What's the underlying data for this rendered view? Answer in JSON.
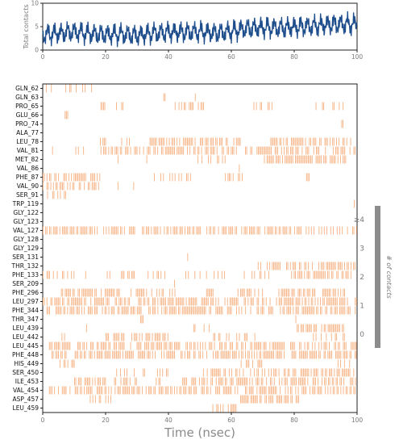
{
  "colors": {
    "line": "#1f4e8c",
    "contact": "#f6b07f",
    "axis": "#222222",
    "tick_text": "#7a7a7a",
    "colorbar": "#8c8c8c"
  },
  "chart_data": [
    {
      "type": "line",
      "ylabel": "Total contacts",
      "xlim": [
        0,
        100
      ],
      "ylim": [
        0,
        10
      ],
      "xticks": [
        "0",
        "20",
        "40",
        "60",
        "80",
        "100"
      ],
      "yticks": [
        "0",
        "5",
        "10"
      ],
      "series": [
        {
          "x": [
            0,
            5,
            10,
            15,
            20,
            25,
            30,
            35,
            40,
            45,
            50,
            55,
            60,
            65,
            70,
            75,
            80,
            85,
            90,
            95,
            100
          ],
          "values": [
            3.3,
            3.6,
            3.9,
            3.5,
            3.3,
            3.4,
            3.1,
            3.6,
            3.8,
            3.8,
            3.9,
            3.6,
            4.0,
            4.6,
            4.8,
            4.7,
            4.9,
            5.1,
            5.4,
            5.6,
            5.5
          ]
        }
      ]
    },
    {
      "type": "heatmap",
      "xlabel": "Time (nsec)",
      "xlim": [
        0,
        100
      ],
      "xticks": [
        "0",
        "20",
        "40",
        "60",
        "80",
        "100"
      ],
      "colorbar": {
        "label": "# of contacts",
        "ticks": [
          "0",
          "1",
          "2",
          "3",
          "≥4"
        ]
      },
      "rows": [
        {
          "label": "GLN_62",
          "intervals": [
            [
              1,
              4
            ],
            [
              6,
              17
            ],
            [
              65,
              66
            ]
          ]
        },
        {
          "label": "GLN_63",
          "intervals": [
            [
              38,
              39
            ],
            [
              48,
              49
            ]
          ]
        },
        {
          "label": "PRO_65",
          "intervals": [
            [
              18,
              28
            ],
            [
              42,
              52
            ],
            [
              65,
              73
            ],
            [
              86,
              96
            ]
          ]
        },
        {
          "label": "GLU_66",
          "intervals": [
            [
              7,
              8
            ]
          ]
        },
        {
          "label": "PRO_74",
          "intervals": [
            [
              95,
              96
            ]
          ]
        },
        {
          "label": "ALA_77",
          "intervals": [
            [
              92,
              94
            ]
          ]
        },
        {
          "label": "LEU_78",
          "intervals": [
            [
              17,
              20
            ],
            [
              25,
              28
            ],
            [
              34,
              63
            ],
            [
              72,
              98
            ]
          ]
        },
        {
          "label": "VAL_81",
          "intervals": [
            [
              3,
              4
            ],
            [
              10,
              15
            ],
            [
              18,
              88
            ],
            [
              89,
              100
            ]
          ]
        },
        {
          "label": "MET_82",
          "intervals": [
            [
              23,
              24
            ],
            [
              33,
              34
            ],
            [
              46,
              58
            ],
            [
              70,
              97
            ]
          ]
        },
        {
          "label": "VAL_86",
          "intervals": [
            [
              28,
              29
            ],
            [
              62,
              63
            ]
          ]
        },
        {
          "label": "PHE_87",
          "intervals": [
            [
              0,
              19
            ],
            [
              35,
              48
            ],
            [
              58,
              65
            ],
            [
              83,
              85
            ]
          ]
        },
        {
          "label": "VAL_90",
          "intervals": [
            [
              0,
              18
            ],
            [
              23,
              26
            ],
            [
              28,
              29
            ]
          ]
        },
        {
          "label": "SER_91",
          "intervals": [
            [
              1,
              8
            ]
          ]
        },
        {
          "label": "TRP_119",
          "intervals": [
            [
              99,
              100
            ]
          ]
        },
        {
          "label": "GLY_122",
          "intervals": []
        },
        {
          "label": "GLY_123",
          "intervals": []
        },
        {
          "label": "VAL_127",
          "intervals": [
            [
              0,
              100
            ]
          ]
        },
        {
          "label": "GLY_128",
          "intervals": []
        },
        {
          "label": "GLY_129",
          "intervals": []
        },
        {
          "label": "SER_131",
          "intervals": [
            [
              33,
              34
            ],
            [
              46,
              47
            ]
          ]
        },
        {
          "label": "THR_132",
          "intervals": [
            [
              68,
              100
            ]
          ]
        },
        {
          "label": "PHE_133",
          "intervals": [
            [
              0,
              14
            ],
            [
              20,
              30
            ],
            [
              33,
              39
            ],
            [
              45,
              58
            ],
            [
              64,
              72
            ],
            [
              77,
              98
            ]
          ]
        },
        {
          "label": "SER_209",
          "intervals": [
            [
              41,
              42
            ]
          ]
        },
        {
          "label": "PHE_296",
          "intervals": [
            [
              5,
              25
            ],
            [
              28,
              42
            ],
            [
              52,
              58
            ],
            [
              62,
              70
            ],
            [
              75,
              96
            ]
          ]
        },
        {
          "label": "LEU_297",
          "intervals": [
            [
              0,
              100
            ]
          ]
        },
        {
          "label": "PHE_344",
          "intervals": [
            [
              0,
              100
            ]
          ]
        },
        {
          "label": "THR_347",
          "intervals": [
            [
              31,
              32
            ],
            [
              80,
              81
            ]
          ]
        },
        {
          "label": "LEU_439",
          "intervals": [
            [
              13,
              14
            ],
            [
              43,
              55
            ],
            [
              80,
              96
            ]
          ]
        },
        {
          "label": "LEU_442",
          "intervals": [
            [
              6,
              10
            ],
            [
              20,
              40
            ],
            [
              53,
              68
            ],
            [
              86,
              96
            ]
          ]
        },
        {
          "label": "LEU_445",
          "intervals": [
            [
              2,
              100
            ]
          ]
        },
        {
          "label": "PHE_448",
          "intervals": [
            [
              2,
              100
            ]
          ]
        },
        {
          "label": "HIS_449",
          "intervals": [
            [
              5,
              12
            ],
            [
              63,
              70
            ],
            [
              93,
              99
            ]
          ]
        },
        {
          "label": "SER_450",
          "intervals": [
            [
              23,
              27
            ],
            [
              29,
              40
            ],
            [
              51,
              64
            ],
            [
              66,
              100
            ]
          ]
        },
        {
          "label": "ILE_453",
          "intervals": [
            [
              10,
              30
            ],
            [
              36,
              38
            ],
            [
              44,
              100
            ]
          ]
        },
        {
          "label": "VAL_454",
          "intervals": [
            [
              2,
              100
            ]
          ]
        },
        {
          "label": "ASP_457",
          "intervals": [
            [
              15,
              23
            ],
            [
              62,
              82
            ]
          ]
        },
        {
          "label": "LEU_459",
          "intervals": [
            [
              54,
              64
            ]
          ]
        }
      ]
    }
  ]
}
